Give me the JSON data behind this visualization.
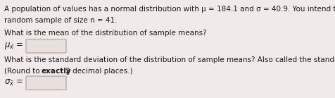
{
  "line1": "A population of values has a normal distribution with μ = 184.1 and σ = 40.9. You intend to draw a",
  "line2": "random sample of size n = 41.",
  "line3": "What is the mean of the distribution of sample means?",
  "line4": "What is the standard deviation of the distribution of sample means? Also called the standard error.",
  "line5": "(Round to  exactly  2 decimal places.)",
  "bg_color": "#f0ebe8",
  "text_color": "#1a1a1a",
  "box_edge_color": "#b0a0a0",
  "box_face_color": "#e8e0dc",
  "font_size": 7.5,
  "fig_width": 4.76,
  "fig_height": 1.39,
  "dpi": 100
}
